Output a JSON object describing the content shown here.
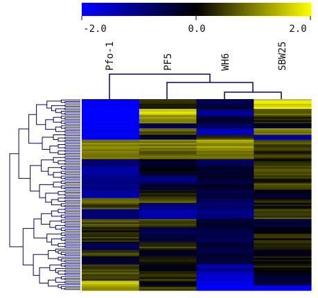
{
  "chart_data": {
    "type": "heatmap",
    "title": "",
    "xlabel": "",
    "ylabel": "",
    "columns": [
      "Pfo-1",
      "PF5",
      "WH6",
      "SBW25"
    ],
    "colorbar": {
      "min_label": "-2.0",
      "mid_label": "0.0",
      "max_label": "2.0",
      "range": [
        -2.0,
        2.0
      ],
      "low_color": "#0000ff",
      "mid_color": "#000000",
      "high_color": "#ffff00"
    },
    "column_dendrogram": {
      "leaf_order": [
        "Pfo-1",
        "PF5",
        "WH6",
        "SBW25"
      ],
      "merges": [
        {
          "left": "WH6",
          "right": "SBW25",
          "height": 0.35
        },
        {
          "left": "PF5",
          "right": "WH6+SBW25",
          "height": 0.55
        },
        {
          "left": "Pfo-1",
          "right": "PF5+WH6+SBW25",
          "height": 0.9
        }
      ]
    },
    "row_blocks": [
      {
        "rows": 6,
        "values": [
          -2.0,
          0.4,
          -0.5,
          1.7
        ]
      },
      {
        "rows": 4,
        "values": [
          -2.0,
          1.6,
          -1.2,
          0.8
        ]
      },
      {
        "rows": 5,
        "values": [
          -2.0,
          1.1,
          -0.4,
          0.3
        ]
      },
      {
        "rows": 3,
        "values": [
          -2.0,
          -0.6,
          -0.8,
          -0.2
        ]
      },
      {
        "rows": 4,
        "values": [
          -1.9,
          0.7,
          -1.6,
          0.9
        ]
      },
      {
        "rows": 3,
        "values": [
          -1.8,
          -0.5,
          0.5,
          -1.4
        ]
      },
      {
        "rows": 7,
        "values": [
          1.1,
          1.0,
          1.2,
          0.6
        ]
      },
      {
        "rows": 5,
        "values": [
          0.9,
          0.8,
          1.0,
          0.4
        ]
      },
      {
        "rows": 4,
        "values": [
          -0.8,
          -0.3,
          -0.6,
          0.2
        ]
      },
      {
        "rows": 6,
        "values": [
          -1.3,
          -0.2,
          -0.5,
          0.5
        ]
      },
      {
        "rows": 5,
        "values": [
          -1.0,
          -0.9,
          -0.4,
          0.3
        ]
      },
      {
        "rows": 4,
        "values": [
          -1.1,
          -0.4,
          -0.2,
          0.6
        ]
      },
      {
        "rows": 5,
        "values": [
          -1.2,
          0.3,
          -0.5,
          -0.2
        ]
      },
      {
        "rows": 3,
        "values": [
          0.7,
          0.6,
          -0.6,
          0.2
        ]
      },
      {
        "rows": 4,
        "values": [
          0.5,
          -1.0,
          -0.8,
          0.1
        ]
      },
      {
        "rows": 6,
        "values": [
          -1.0,
          -1.4,
          -0.9,
          0.5
        ]
      },
      {
        "rows": 5,
        "values": [
          0.6,
          0.5,
          -0.3,
          -0.4
        ]
      },
      {
        "rows": 4,
        "values": [
          0.3,
          -0.6,
          -0.5,
          0.1
        ]
      },
      {
        "rows": 5,
        "values": [
          0.4,
          -0.4,
          -0.7,
          0.2
        ]
      },
      {
        "rows": 5,
        "values": [
          -0.5,
          0.4,
          -0.3,
          0.3
        ]
      },
      {
        "rows": 4,
        "values": [
          0.5,
          -0.3,
          -0.4,
          -0.2
        ]
      },
      {
        "rows": 5,
        "values": [
          -0.3,
          0.2,
          -0.4,
          0.1
        ]
      },
      {
        "rows": 4,
        "values": [
          0.4,
          -0.2,
          -1.2,
          0.2
        ]
      },
      {
        "rows": 6,
        "values": [
          0.6,
          0.3,
          -1.6,
          -0.3
        ]
      },
      {
        "rows": 3,
        "values": [
          1.6,
          -0.1,
          -2.0,
          -0.5
        ]
      },
      {
        "rows": 3,
        "values": [
          1.2,
          0.4,
          -1.8,
          -1.7
        ]
      }
    ],
    "grid": false,
    "legend_placement": "top"
  }
}
